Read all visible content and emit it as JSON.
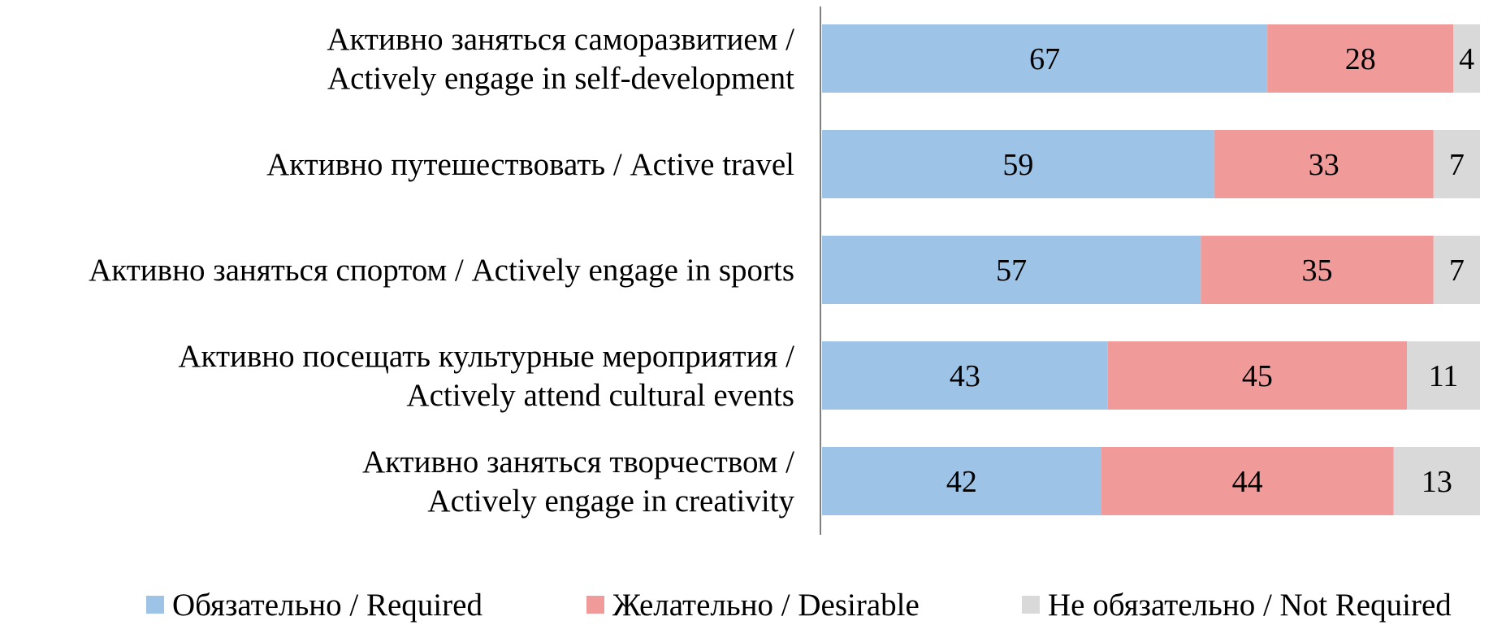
{
  "chart_data": {
    "type": "bar",
    "orientation": "horizontal",
    "stacked": true,
    "categories": [
      [
        "Активно заняться саморазвитием /",
        "Actively engage in self-development"
      ],
      [
        "Активно путешествовать / Active travel"
      ],
      [
        "Активно заняться спортом / Actively engage in sports"
      ],
      [
        "Активно посещать культурные мероприятия /",
        "Actively attend cultural events"
      ],
      [
        "Активно заняться творчеством /",
        "Actively engage in creativity"
      ]
    ],
    "series": [
      {
        "name": "Обязательно / Required",
        "color": "#9dc3e6",
        "values": [
          67,
          59,
          57,
          43,
          42
        ]
      },
      {
        "name": "Желательно / Desirable",
        "color": "#f09b99",
        "values": [
          28,
          33,
          35,
          45,
          44
        ]
      },
      {
        "name": "Не обязательно / Not Required",
        "color": "#d9d9d9",
        "values": [
          4,
          7,
          7,
          11,
          13
        ]
      }
    ],
    "xlim": [
      0,
      99
    ],
    "legend_position": "bottom",
    "grid": false,
    "title": "",
    "xlabel": "",
    "ylabel": ""
  }
}
